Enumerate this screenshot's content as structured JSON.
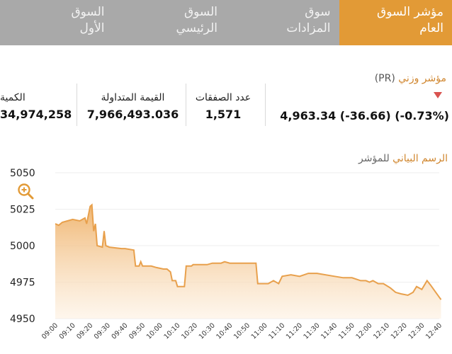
{
  "tabs": [
    {
      "line1": "مؤشر السوق",
      "line2": "العام",
      "active": true
    },
    {
      "line1": "سوق",
      "line2": "المزادات",
      "active": false
    },
    {
      "line1": "السوق",
      "line2": "الرئيسي",
      "active": false
    },
    {
      "line1": "السوق",
      "line2": "الأول",
      "active": false
    }
  ],
  "index": {
    "title_main": "مؤشر وزني",
    "title_code": "(PR)",
    "trend_icon": "triangle-down-icon",
    "value_text": "4,963.34 (-36.66) (-0.73%)"
  },
  "stats": {
    "deals": {
      "label": "عدد الصفقات",
      "value": "1,571"
    },
    "traded_value": {
      "label": "القيمة المتداولة",
      "value": "7,966,493.036"
    },
    "quantity": {
      "label": "الكمية",
      "value": "34,974,258"
    }
  },
  "chart_title": {
    "main": "الرسم البياني",
    "suffix": "للمؤشر"
  },
  "zoom_icon": "zoom-in-icon",
  "colors": {
    "accent": "#e29a36",
    "tab_bg": "#a9a9a9",
    "down": "#d9534f",
    "line": "#e8a04c"
  },
  "chart_data": {
    "type": "area",
    "xlabel": "",
    "ylabel": "",
    "ylim": [
      4950,
      5050
    ],
    "yticks": [
      5050,
      5025,
      5000,
      4975,
      4950
    ],
    "xticks": [
      "09:00",
      "09:10",
      "09:20",
      "09:30",
      "09:40",
      "09:50",
      "10:00",
      "10:10",
      "10:20",
      "10:30",
      "10:40",
      "10:50",
      "11:00",
      "11:10",
      "11:20",
      "11:30",
      "11:40",
      "11:50",
      "12:00",
      "12:10",
      "12:20",
      "12:30",
      "12:40"
    ],
    "series": [
      {
        "points": [
          [
            "09:00",
            5015
          ],
          [
            "09:02",
            5014
          ],
          [
            "09:04",
            5016
          ],
          [
            "09:07",
            5017
          ],
          [
            "09:10",
            5018
          ],
          [
            "09:14",
            5017
          ],
          [
            "09:17",
            5019
          ],
          [
            "09:18",
            5015
          ],
          [
            "09:20",
            5027
          ],
          [
            "09:21",
            5028
          ],
          [
            "09:22",
            5010
          ],
          [
            "09:23",
            5015
          ],
          [
            "09:24",
            5000
          ],
          [
            "09:27",
            4999
          ],
          [
            "09:28",
            5010
          ],
          [
            "09:29",
            5000
          ],
          [
            "09:31",
            4999
          ],
          [
            "09:38",
            4998
          ],
          [
            "09:40",
            4998
          ],
          [
            "09:45",
            4997
          ],
          [
            "09:46",
            4986
          ],
          [
            "09:48",
            4986
          ],
          [
            "09:49",
            4989
          ],
          [
            "09:50",
            4986
          ],
          [
            "09:55",
            4986
          ],
          [
            "09:58",
            4985
          ],
          [
            "10:02",
            4984
          ],
          [
            "10:04",
            4984
          ],
          [
            "10:06",
            4982
          ],
          [
            "10:07",
            4976
          ],
          [
            "10:09",
            4976
          ],
          [
            "10:10",
            4972
          ],
          [
            "10:14",
            4972
          ],
          [
            "10:15",
            4986
          ],
          [
            "10:18",
            4986
          ],
          [
            "10:19",
            4987
          ],
          [
            "10:27",
            4987
          ],
          [
            "10:30",
            4988
          ],
          [
            "10:35",
            4988
          ],
          [
            "10:37",
            4989
          ],
          [
            "10:40",
            4988
          ],
          [
            "10:45",
            4988
          ],
          [
            "10:50",
            4988
          ],
          [
            "10:55",
            4988
          ],
          [
            "10:56",
            4974
          ],
          [
            "11:02",
            4974
          ],
          [
            "11:05",
            4976
          ],
          [
            "11:08",
            4974
          ],
          [
            "11:10",
            4979
          ],
          [
            "11:15",
            4980
          ],
          [
            "11:20",
            4979
          ],
          [
            "11:25",
            4981
          ],
          [
            "11:30",
            4981
          ],
          [
            "11:40",
            4979
          ],
          [
            "11:45",
            4978
          ],
          [
            "11:50",
            4978
          ],
          [
            "11:55",
            4976
          ],
          [
            "11:58",
            4976
          ],
          [
            "12:00",
            4975
          ],
          [
            "12:02",
            4976
          ],
          [
            "12:05",
            4974
          ],
          [
            "12:08",
            4974
          ],
          [
            "12:12",
            4971
          ],
          [
            "12:15",
            4968
          ],
          [
            "12:18",
            4967
          ],
          [
            "12:22",
            4966
          ],
          [
            "12:25",
            4968
          ],
          [
            "12:27",
            4972
          ],
          [
            "12:30",
            4970
          ],
          [
            "12:33",
            4976
          ],
          [
            "12:35",
            4973
          ],
          [
            "12:38",
            4968
          ],
          [
            "12:41",
            4963
          ]
        ]
      }
    ]
  }
}
